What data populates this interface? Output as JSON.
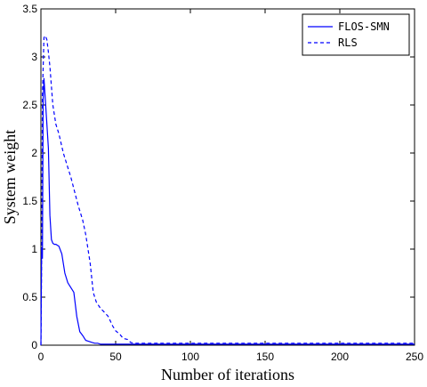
{
  "chart_data": {
    "type": "line",
    "title": "",
    "xlabel": "Number of iterations",
    "ylabel": "System weight",
    "xlim": [
      0,
      250
    ],
    "ylim": [
      0,
      3.5
    ],
    "x_ticks": [
      "0",
      "50",
      "100",
      "150",
      "200",
      "250"
    ],
    "y_ticks": [
      "0",
      "0.5",
      "1",
      "1.5",
      "2",
      "2.5",
      "3",
      "3.5"
    ],
    "x_tick_values": [
      0,
      50,
      100,
      150,
      200,
      250
    ],
    "y_tick_values": [
      0,
      0.5,
      1,
      1.5,
      2,
      2.5,
      3,
      3.5
    ],
    "grid": false,
    "legend_position": "top-right",
    "series": [
      {
        "name": "FLOS-SMN",
        "style": "solid",
        "color": "#0000ff",
        "x": [
          0,
          0.5,
          1,
          1.5,
          2,
          3,
          4,
          5,
          6,
          7,
          8,
          9,
          10,
          12,
          14,
          16,
          18,
          20,
          22,
          24,
          26,
          28,
          30,
          32,
          34,
          36,
          38,
          40,
          45,
          50,
          100,
          150,
          200,
          250
        ],
        "y": [
          0,
          1.02,
          0.9,
          2.55,
          2.78,
          2.55,
          2.3,
          2.05,
          1.35,
          1.1,
          1.06,
          1.05,
          1.05,
          1.03,
          0.95,
          0.75,
          0.65,
          0.6,
          0.55,
          0.3,
          0.14,
          0.1,
          0.05,
          0.04,
          0.03,
          0.02,
          0.02,
          0.01,
          0.01,
          0.01,
          0.01,
          0.01,
          0.01,
          0.01
        ]
      },
      {
        "name": "RLS",
        "style": "dashed",
        "color": "#0000ff",
        "x": [
          0,
          0.5,
          1,
          2,
          3,
          4,
          5,
          6,
          8,
          10,
          12,
          15,
          18,
          20,
          25,
          28,
          30,
          33,
          35,
          37,
          40,
          42,
          45,
          48,
          50,
          53,
          55,
          58,
          60,
          62,
          70,
          80,
          90,
          100,
          150,
          200,
          250
        ],
        "y": [
          0,
          0.9,
          2.6,
          3.2,
          3.22,
          3.18,
          3.05,
          2.9,
          2.5,
          2.3,
          2.2,
          2.0,
          1.85,
          1.75,
          1.45,
          1.3,
          1.15,
          0.85,
          0.55,
          0.45,
          0.38,
          0.35,
          0.3,
          0.2,
          0.15,
          0.11,
          0.07,
          0.06,
          0.03,
          0.02,
          0.02,
          0.02,
          0.02,
          0.02,
          0.02,
          0.02,
          0.02
        ]
      }
    ]
  }
}
